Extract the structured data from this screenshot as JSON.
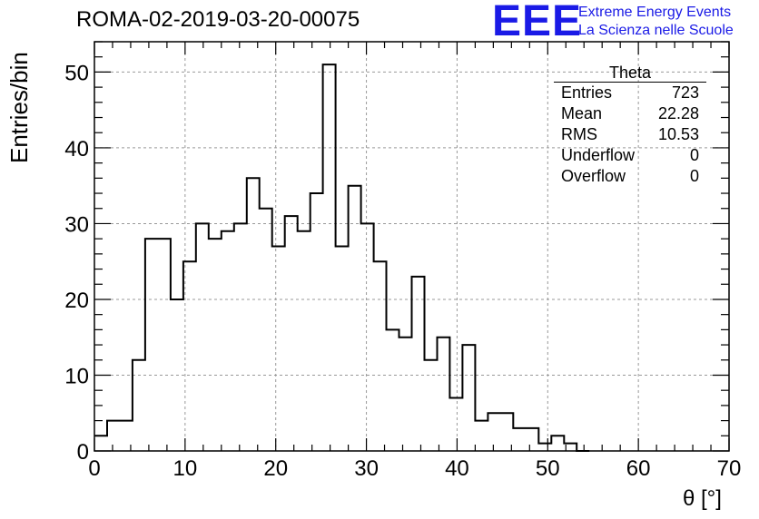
{
  "header": {
    "title": "ROMA-02-2019-03-20-00075",
    "logo_mark": "EEE",
    "logo_line1": "Extreme Energy Events",
    "logo_line2": "La Scienza nelle Scuole"
  },
  "stats": {
    "name": "Theta",
    "rows": [
      {
        "label": "Entries",
        "value": "723"
      },
      {
        "label": "Mean",
        "value": "22.28"
      },
      {
        "label": "RMS",
        "value": "10.53"
      },
      {
        "label": "Underflow",
        "value": "0"
      },
      {
        "label": "Overflow",
        "value": "0"
      }
    ]
  },
  "chart_data": {
    "type": "bar",
    "style": "step-histogram",
    "xlabel": "θ [°]",
    "ylabel": "Entries/bin",
    "xlim": [
      0,
      70
    ],
    "ylim": [
      0,
      54
    ],
    "xticks": [
      0,
      10,
      20,
      30,
      40,
      50,
      60,
      70
    ],
    "yticks": [
      0,
      10,
      20,
      30,
      40,
      50
    ],
    "grid": true,
    "bin_width": 1.4,
    "bin_start": 0,
    "values": [
      2,
      4,
      4,
      12,
      28,
      28,
      20,
      25,
      30,
      28,
      29,
      30,
      36,
      32,
      27,
      31,
      29,
      34,
      51,
      27,
      35,
      30,
      25,
      16,
      15,
      23,
      12,
      15,
      7,
      14,
      4,
      5,
      5,
      3,
      3,
      1,
      2,
      1,
      0
    ]
  }
}
